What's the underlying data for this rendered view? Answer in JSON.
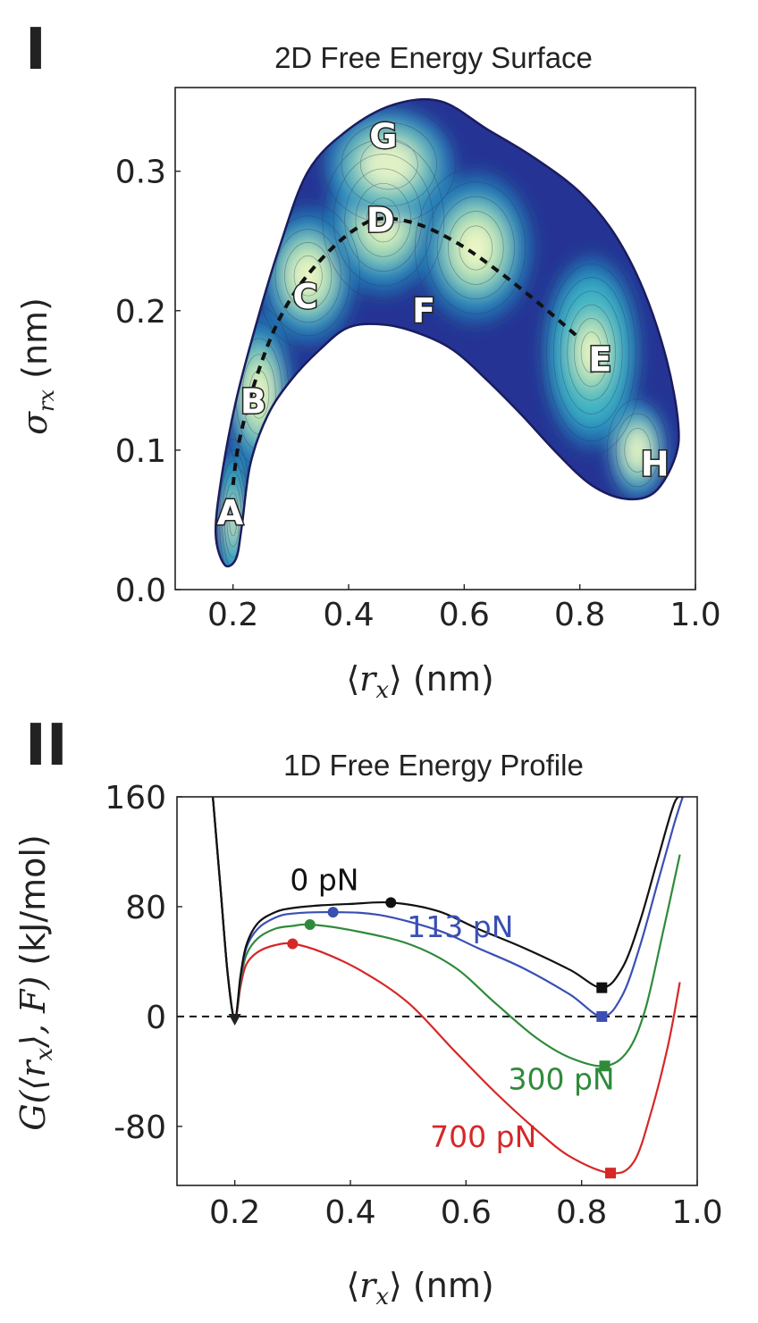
{
  "panels": {
    "panel1_label": "I",
    "panel2_label": "II"
  },
  "chart_data": [
    {
      "type": "heatmap",
      "title": "2D Free Energy Surface",
      "xlabel_prefix": "⟨",
      "xlabel_var": "r",
      "xlabel_sub": "x",
      "xlabel_suffix": "⟩ (nm)",
      "ylabel_var": "σ",
      "ylabel_sub": "rx",
      "ylabel_suffix": " (nm)",
      "xlim": [
        0.1,
        1.0
      ],
      "ylim": [
        0.0,
        0.36
      ],
      "x_ticks": [
        0.2,
        0.4,
        0.6,
        0.8,
        1.0
      ],
      "x_tick_labels": [
        "0.2",
        "0.4",
        "0.6",
        "0.8",
        "1.0"
      ],
      "y_ticks": [
        0.0,
        0.1,
        0.2,
        0.3
      ],
      "y_tick_labels": [
        "0.0",
        "0.1",
        "0.2",
        "0.3"
      ],
      "colormap": [
        "#0b1a68",
        "#253494",
        "#1d6aab",
        "#2c8fbf",
        "#41b6c4",
        "#7fcdbb",
        "#c7e9b4",
        "#f4f9c8"
      ],
      "outline_color": "#1a1c5e",
      "points": [
        {
          "label": "A",
          "x": 0.195,
          "y": 0.055
        },
        {
          "label": "B",
          "x": 0.235,
          "y": 0.135
        },
        {
          "label": "C",
          "x": 0.325,
          "y": 0.21
        },
        {
          "label": "D",
          "x": 0.455,
          "y": 0.265
        },
        {
          "label": "E",
          "x": 0.835,
          "y": 0.165
        },
        {
          "label": "F",
          "x": 0.53,
          "y": 0.2
        },
        {
          "label": "G",
          "x": 0.46,
          "y": 0.325
        },
        {
          "label": "H",
          "x": 0.93,
          "y": 0.09
        }
      ],
      "path": {
        "style": "dashed",
        "color": "#111111",
        "x": [
          0.2,
          0.21,
          0.235,
          0.27,
          0.31,
          0.36,
          0.41,
          0.455,
          0.52,
          0.59,
          0.66,
          0.73,
          0.8
        ],
        "y": [
          0.075,
          0.105,
          0.145,
          0.185,
          0.215,
          0.24,
          0.258,
          0.266,
          0.262,
          0.248,
          0.228,
          0.205,
          0.18
        ]
      }
    },
    {
      "type": "line",
      "title": "1D Free Energy Profile",
      "xlabel_prefix": "⟨",
      "xlabel_var": "r",
      "xlabel_sub": "x",
      "xlabel_suffix": "⟩ (nm)",
      "ylabel_text": "G(⟨r",
      "ylabel_sub": "x",
      "ylabel_text2": "⟩, F)",
      "ylabel_suffix": " (kJ/mol)",
      "xlim": [
        0.1,
        1.0
      ],
      "ylim": [
        -123,
        160
      ],
      "x_ticks": [
        0.2,
        0.4,
        0.6,
        0.8,
        1.0
      ],
      "x_tick_labels": [
        "0.2",
        "0.4",
        "0.6",
        "0.8",
        "1.0"
      ],
      "y_ticks": [
        160,
        80,
        0,
        -80
      ],
      "y_tick_labels": [
        "160",
        "80",
        "0",
        "-80"
      ],
      "grid": false,
      "reference_line": {
        "y": 0,
        "style": "dashed",
        "color": "#111111"
      },
      "common_minimum": {
        "x": 0.2,
        "y": -2,
        "marker": "triangle"
      },
      "series": [
        {
          "name": "0 pN",
          "color": "#111111",
          "x": [
            0.162,
            0.175,
            0.188,
            0.2,
            0.21,
            0.22,
            0.24,
            0.27,
            0.3,
            0.35,
            0.4,
            0.47,
            0.55,
            0.62,
            0.7,
            0.78,
            0.835,
            0.87,
            0.9,
            0.93,
            0.96,
            0.975
          ],
          "y": [
            160,
            95,
            30,
            -2,
            30,
            52,
            68,
            76,
            79,
            81,
            82,
            83,
            77,
            64,
            50,
            34,
            21,
            35,
            68,
            112,
            155,
            160
          ],
          "maximum": {
            "x": 0.47,
            "y": 83
          },
          "minimum": {
            "x": 0.835,
            "y": 21
          }
        },
        {
          "name": "113 pN",
          "color": "#3a4fb4",
          "x": [
            0.162,
            0.175,
            0.188,
            0.2,
            0.21,
            0.22,
            0.24,
            0.27,
            0.3,
            0.37,
            0.45,
            0.55,
            0.62,
            0.7,
            0.78,
            0.835,
            0.87,
            0.9,
            0.93,
            0.96,
            0.975
          ],
          "y": [
            160,
            95,
            30,
            -2,
            28,
            50,
            64,
            72,
            75,
            76,
            74,
            63,
            50,
            35,
            16,
            0,
            15,
            50,
            95,
            140,
            160
          ],
          "maximum": {
            "x": 0.37,
            "y": 76
          },
          "minimum": {
            "x": 0.835,
            "y": 0
          }
        },
        {
          "name": "300 pN",
          "color": "#2e8b3a",
          "x": [
            0.162,
            0.175,
            0.188,
            0.2,
            0.21,
            0.22,
            0.24,
            0.27,
            0.3,
            0.33,
            0.4,
            0.5,
            0.58,
            0.65,
            0.72,
            0.78,
            0.84,
            0.88,
            0.91,
            0.94,
            0.97
          ],
          "y": [
            160,
            95,
            30,
            -2,
            26,
            45,
            57,
            64,
            66,
            67,
            63,
            53,
            36,
            10,
            -15,
            -30,
            -36,
            -25,
            5,
            60,
            118
          ],
          "maximum": {
            "x": 0.33,
            "y": 67
          },
          "minimum": {
            "x": 0.84,
            "y": -36
          }
        },
        {
          "name": "700 pN",
          "color": "#d62728",
          "x": [
            0.162,
            0.175,
            0.188,
            0.2,
            0.21,
            0.22,
            0.24,
            0.27,
            0.3,
            0.35,
            0.42,
            0.5,
            0.58,
            0.65,
            0.72,
            0.78,
            0.85,
            0.89,
            0.92,
            0.95,
            0.97
          ],
          "y": [
            160,
            95,
            30,
            -2,
            22,
            38,
            47,
            52,
            53,
            47,
            33,
            10,
            -25,
            -55,
            -82,
            -102,
            -114,
            -106,
            -70,
            -20,
            25
          ],
          "maximum": {
            "x": 0.3,
            "y": 53
          },
          "minimum": {
            "x": 0.85,
            "y": -114
          }
        }
      ],
      "series_labels": [
        {
          "name": "0 pN",
          "x": 0.355,
          "y": 92
        },
        {
          "name": "113 pN",
          "x": 0.59,
          "y": 58
        },
        {
          "name": "300 pN",
          "x": 0.765,
          "y": -53
        },
        {
          "name": "700 pN",
          "x": 0.63,
          "y": -95
        }
      ]
    }
  ]
}
